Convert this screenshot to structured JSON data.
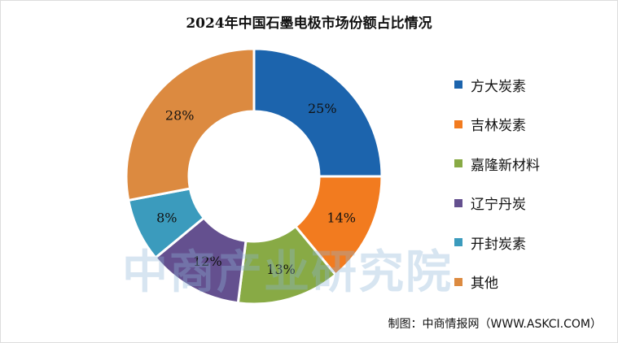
{
  "chart_data": {
    "type": "pie",
    "variant": "donut",
    "title": "2024年中国石墨电极市场份额占比情况",
    "categories": [
      "方大炭素",
      "吉林炭素",
      "嘉隆新材料",
      "辽宁丹炭",
      "开封炭素",
      "其他"
    ],
    "values": [
      25,
      14,
      13,
      12,
      8,
      28
    ],
    "data_labels": [
      "25%",
      "14%",
      "13%",
      "12%",
      "8%",
      "28%"
    ],
    "colors": [
      "#1c64ad",
      "#f27b1f",
      "#88aa45",
      "#64508f",
      "#3b9bbd",
      "#dc8a40"
    ],
    "legend_position": "right"
  },
  "watermark": "中商产业研究院",
  "source": "制图：中商情报网（WWW.ASKCI.COM）"
}
